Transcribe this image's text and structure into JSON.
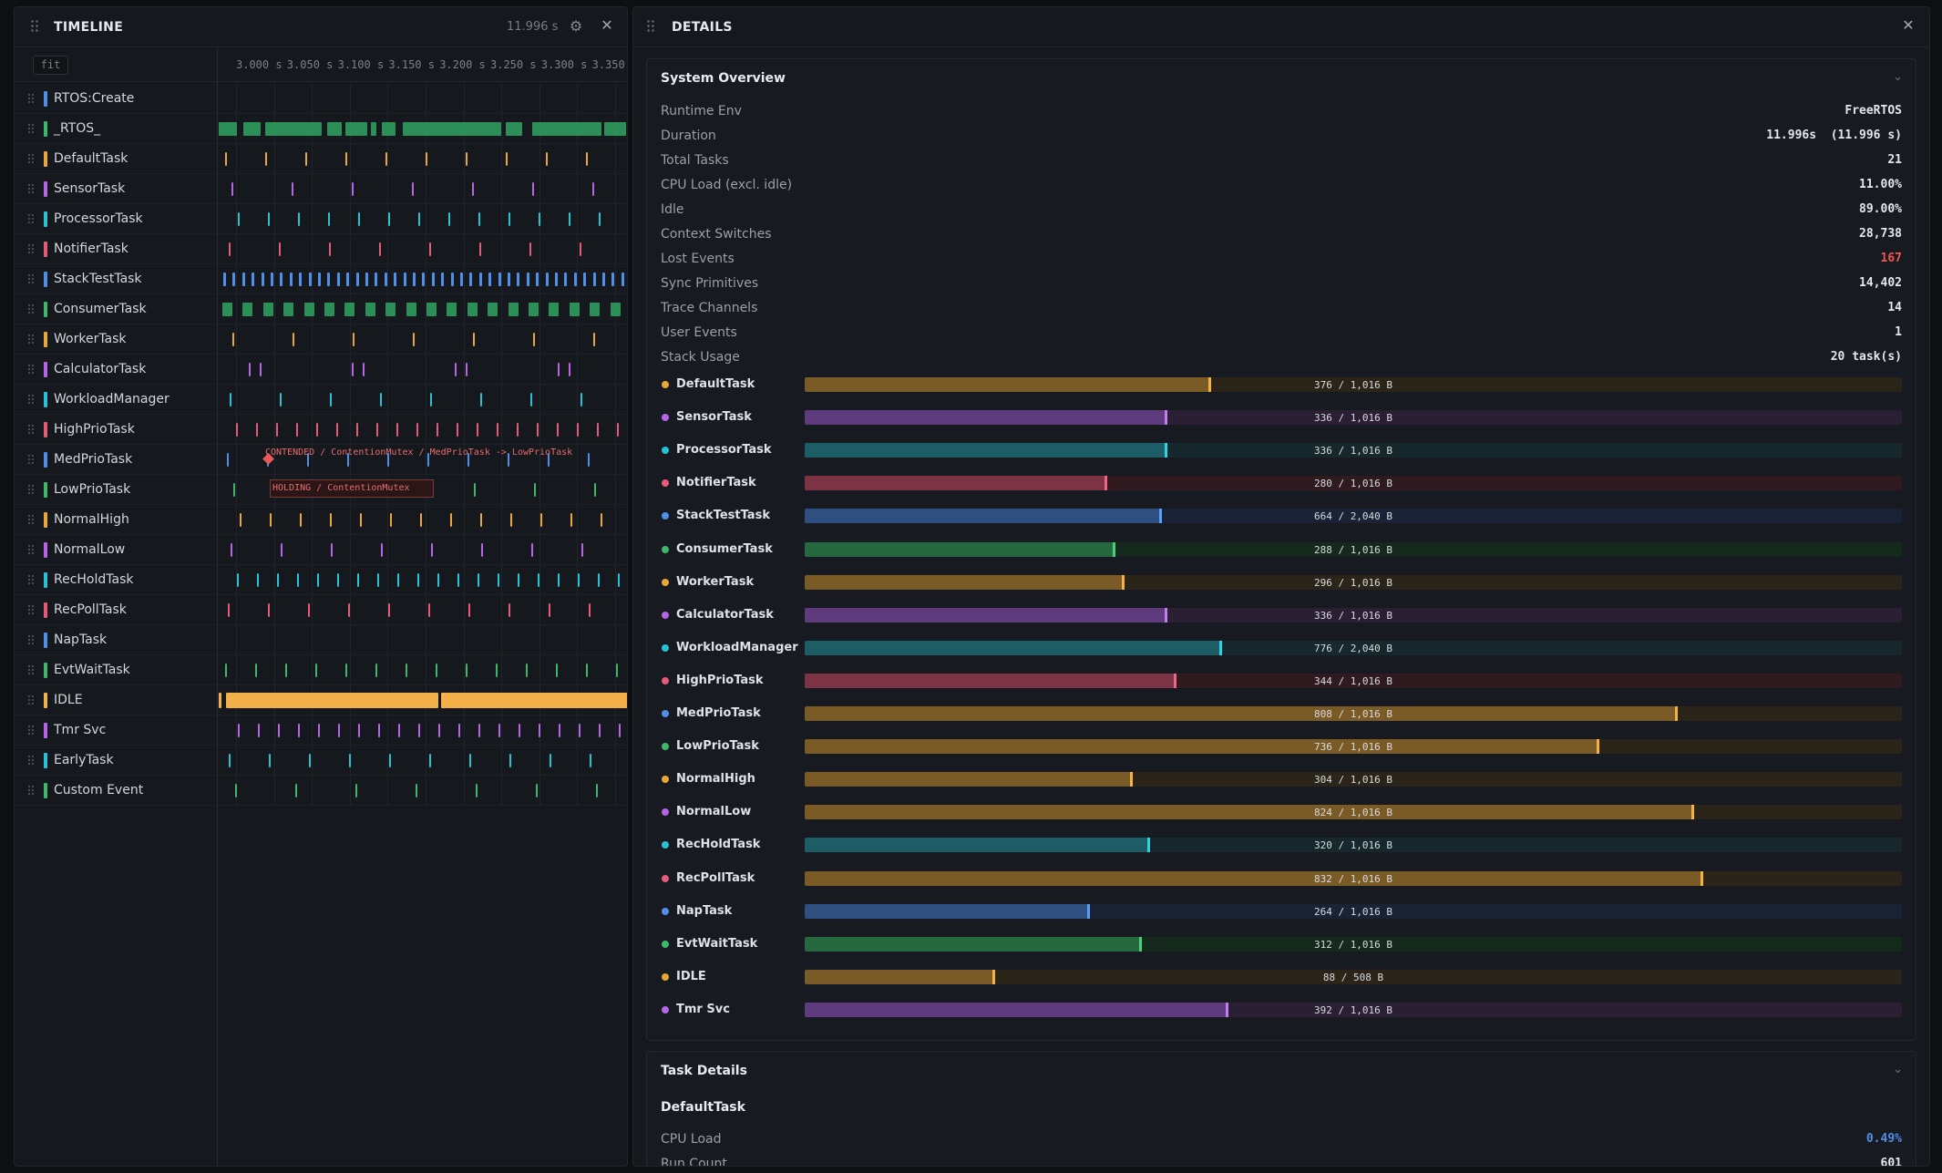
{
  "timeline": {
    "title": "TIMELINE",
    "duration": "11.996 s",
    "fit_label": "fit",
    "ticks": [
      "3.000 s",
      "3.050 s",
      "3.100 s",
      "3.150 s",
      "3.200 s",
      "3.250 s",
      "3.300 s",
      "3.350 s"
    ],
    "annotations": {
      "contended": "CONTENDED / ContentionMutex / MedPrioTask -> LowPrioTask",
      "holding": "HOLDING / ContentionMutex"
    },
    "rows": [
      {
        "name": "RTOS:Create",
        "color": "#4f8fe8",
        "style": "empty"
      },
      {
        "name": "_RTOS_",
        "color": "#3db86b",
        "style": "blocks"
      },
      {
        "name": "DefaultTask",
        "color": "#e9a63b",
        "style": "ticks"
      },
      {
        "name": "SensorTask",
        "color": "#b565e6",
        "style": "ticks"
      },
      {
        "name": "ProcessorTask",
        "color": "#28c2d4",
        "style": "ticks"
      },
      {
        "name": "NotifierTask",
        "color": "#e85a7a",
        "style": "ticks"
      },
      {
        "name": "StackTestTask",
        "color": "#4f8fe8",
        "style": "dense"
      },
      {
        "name": "ConsumerTask",
        "color": "#3db86b",
        "style": "blocks2"
      },
      {
        "name": "WorkerTask",
        "color": "#e9a63b",
        "style": "ticks"
      },
      {
        "name": "CalculatorTask",
        "color": "#b565e6",
        "style": "pairs"
      },
      {
        "name": "WorkloadManager",
        "color": "#28c2d4",
        "style": "ticks"
      },
      {
        "name": "HighPrioTask",
        "color": "#e85a7a",
        "style": "ticks"
      },
      {
        "name": "MedPrioTask",
        "color": "#4f8fe8",
        "style": "ticks"
      },
      {
        "name": "LowPrioTask",
        "color": "#3db86b",
        "style": "ticks"
      },
      {
        "name": "NormalHigh",
        "color": "#e9a63b",
        "style": "ticks"
      },
      {
        "name": "NormalLow",
        "color": "#b565e6",
        "style": "ticks"
      },
      {
        "name": "RecHoldTask",
        "color": "#28c2d4",
        "style": "ticks"
      },
      {
        "name": "RecPollTask",
        "color": "#e85a7a",
        "style": "ticks"
      },
      {
        "name": "NapTask",
        "color": "#4f8fe8",
        "style": "empty"
      },
      {
        "name": "EvtWaitTask",
        "color": "#3db86b",
        "style": "ticks"
      },
      {
        "name": "IDLE",
        "color": "#f4b14a",
        "style": "idle"
      },
      {
        "name": "Tmr Svc",
        "color": "#b565e6",
        "style": "ticks"
      },
      {
        "name": "EarlyTask",
        "color": "#28c2d4",
        "style": "ticks"
      },
      {
        "name": "Custom Event",
        "color": "#3db86b",
        "style": "ticks"
      }
    ]
  },
  "details": {
    "title": "DETAILS",
    "overview": {
      "title": "System Overview",
      "items": [
        {
          "key": "Runtime Env",
          "value": "FreeRTOS"
        },
        {
          "key": "Duration",
          "value": "11.996s  (11.996 s)"
        },
        {
          "key": "Total Tasks",
          "value": "21"
        },
        {
          "key": "CPU Load (excl. idle)",
          "value": "11.00%"
        },
        {
          "key": "Idle",
          "value": "89.00%"
        },
        {
          "key": "Context Switches",
          "value": "28,738"
        },
        {
          "key": "Lost Events",
          "value": "167",
          "color": "#f0574f"
        },
        {
          "key": "Sync Primitives",
          "value": "14,402"
        },
        {
          "key": "Trace Channels",
          "value": "14"
        },
        {
          "key": "User Events",
          "value": "1"
        },
        {
          "key": "Stack Usage",
          "value": "20 task(s)"
        }
      ]
    },
    "stack_usage": [
      {
        "name": "DefaultTask",
        "dot": "#e9a63b",
        "used": 376,
        "size": 1016,
        "label": "376 / 1,016 B",
        "fill": "#7a5a25",
        "track": "#2b2418",
        "mark": "#f5b142"
      },
      {
        "name": "SensorTask",
        "dot": "#b565e6",
        "used": 336,
        "size": 1016,
        "label": "336 / 1,016 B",
        "fill": "#5e3b7c",
        "track": "#2a1f33",
        "mark": "#c27df0"
      },
      {
        "name": "ProcessorTask",
        "dot": "#28c2d4",
        "used": 336,
        "size": 1016,
        "label": "336 / 1,016 B",
        "fill": "#1d5d66",
        "track": "#16282c",
        "mark": "#32d2e6"
      },
      {
        "name": "NotifierTask",
        "dot": "#e85a7a",
        "used": 280,
        "size": 1016,
        "label": "280 / 1,016 B",
        "fill": "#7c3444",
        "track": "#2f1a20",
        "mark": "#f06582"
      },
      {
        "name": "StackTestTask",
        "dot": "#4f8fe8",
        "used": 664,
        "size": 2040,
        "label": "664 / 2,040 B",
        "fill": "#2f4f80",
        "track": "#192335",
        "mark": "#5c9ef5"
      },
      {
        "name": "ConsumerTask",
        "dot": "#3db86b",
        "used": 288,
        "size": 1016,
        "label": "288 / 1,016 B",
        "fill": "#27693f",
        "track": "#16291d",
        "mark": "#48d07c"
      },
      {
        "name": "WorkerTask",
        "dot": "#e9a63b",
        "used": 296,
        "size": 1016,
        "label": "296 / 1,016 B",
        "fill": "#7a5a25",
        "track": "#2b2418",
        "mark": "#f5b142"
      },
      {
        "name": "CalculatorTask",
        "dot": "#b565e6",
        "used": 336,
        "size": 1016,
        "label": "336 / 1,016 B",
        "fill": "#5e3b7c",
        "track": "#2a1f33",
        "mark": "#c27df0"
      },
      {
        "name": "WorkloadManager",
        "dot": "#28c2d4",
        "used": 776,
        "size": 2040,
        "label": "776 / 2,040 B",
        "fill": "#1d5d66",
        "track": "#16282c",
        "mark": "#32d2e6"
      },
      {
        "name": "HighPrioTask",
        "dot": "#e85a7a",
        "used": 344,
        "size": 1016,
        "label": "344 / 1,016 B",
        "fill": "#7c3444",
        "track": "#2f1a20",
        "mark": "#f06582"
      },
      {
        "name": "MedPrioTask",
        "dot": "#4f8fe8",
        "used": 808,
        "size": 1016,
        "label": "808 / 1,016 B",
        "fill": "#7a5a25",
        "track": "#2b2418",
        "mark": "#f5b142"
      },
      {
        "name": "LowPrioTask",
        "dot": "#3db86b",
        "used": 736,
        "size": 1016,
        "label": "736 / 1,016 B",
        "fill": "#7a5a25",
        "track": "#2b2418",
        "mark": "#f5b142"
      },
      {
        "name": "NormalHigh",
        "dot": "#e9a63b",
        "used": 304,
        "size": 1016,
        "label": "304 / 1,016 B",
        "fill": "#7a5a25",
        "track": "#2b2418",
        "mark": "#f5b142"
      },
      {
        "name": "NormalLow",
        "dot": "#b565e6",
        "used": 824,
        "size": 1016,
        "label": "824 / 1,016 B",
        "fill": "#7a5a25",
        "track": "#2b2418",
        "mark": "#f5b142"
      },
      {
        "name": "RecHoldTask",
        "dot": "#28c2d4",
        "used": 320,
        "size": 1016,
        "label": "320 / 1,016 B",
        "fill": "#1d5d66",
        "track": "#16282c",
        "mark": "#32d2e6"
      },
      {
        "name": "RecPollTask",
        "dot": "#e85a7a",
        "used": 832,
        "size": 1016,
        "label": "832 / 1,016 B",
        "fill": "#7a5a25",
        "track": "#2b2418",
        "mark": "#f5b142"
      },
      {
        "name": "NapTask",
        "dot": "#4f8fe8",
        "used": 264,
        "size": 1016,
        "label": "264 / 1,016 B",
        "fill": "#2f4f80",
        "track": "#192335",
        "mark": "#5c9ef5"
      },
      {
        "name": "EvtWaitTask",
        "dot": "#3db86b",
        "used": 312,
        "size": 1016,
        "label": "312 / 1,016 B",
        "fill": "#27693f",
        "track": "#16291d",
        "mark": "#48d07c"
      },
      {
        "name": "IDLE",
        "dot": "#e9a63b",
        "used": 88,
        "size": 508,
        "label": "88 / 508 B",
        "fill": "#7a5a25",
        "track": "#2b2418",
        "mark": "#f5b142"
      },
      {
        "name": "Tmr Svc",
        "dot": "#b565e6",
        "used": 392,
        "size": 1016,
        "label": "392 / 1,016 B",
        "fill": "#5e3b7c",
        "track": "#2a1f33",
        "mark": "#c27df0"
      }
    ],
    "task_details": {
      "title": "Task Details",
      "task_name": "DefaultTask",
      "rows": [
        {
          "key": "CPU Load",
          "value": "0.49%",
          "color": "#4f8fe8"
        },
        {
          "key": "Run Count",
          "value": "601"
        }
      ]
    }
  }
}
